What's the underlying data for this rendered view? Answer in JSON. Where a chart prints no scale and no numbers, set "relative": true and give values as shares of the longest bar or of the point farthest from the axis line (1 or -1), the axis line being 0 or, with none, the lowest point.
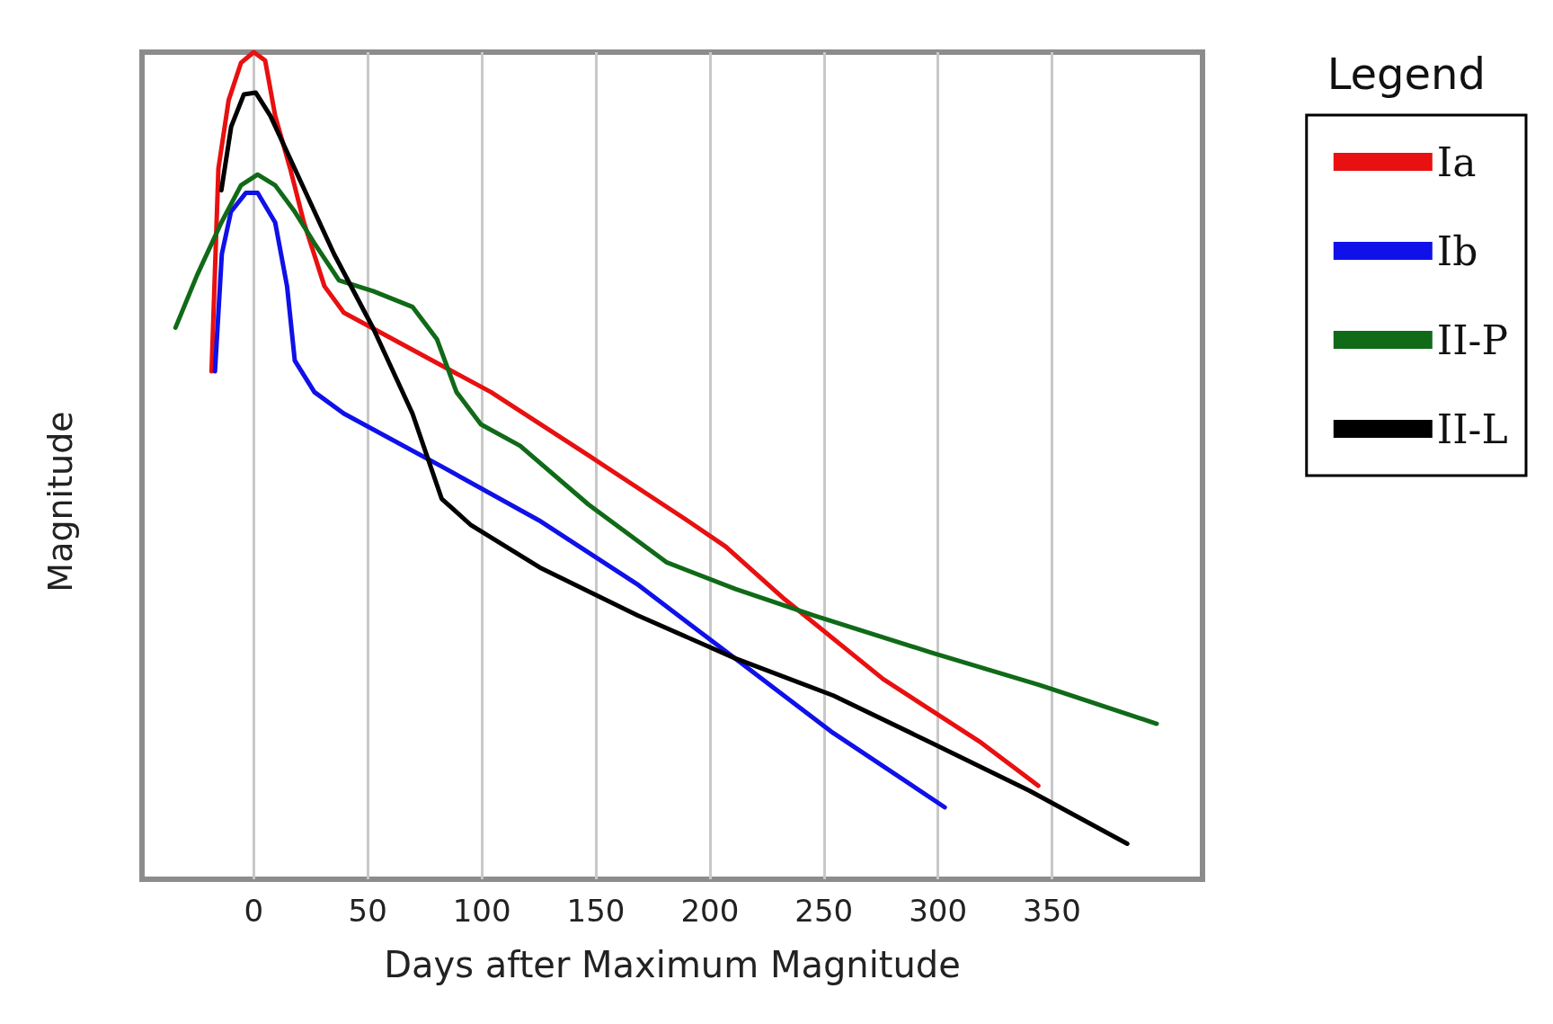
{
  "chart_data": {
    "type": "line",
    "xlabel": "Days after Maximum Magnitude",
    "ylabel": "Magnitude",
    "legend_title": "Legend",
    "relative": true,
    "xlim": [
      -49,
      416
    ],
    "xticks": [
      0,
      50,
      100,
      150,
      200,
      250,
      300,
      350
    ],
    "grid": "x",
    "legend": "right",
    "marker": "none",
    "line_style": "solid",
    "series": [
      {
        "name": "Ia",
        "color": "#e81010",
        "x": [
          -18.5,
          -15.5,
          -11,
          -5.6,
          0,
          5,
          9.4,
          16,
          22,
          31,
          39.5,
          61,
          104,
          147,
          190,
          207,
          233,
          276,
          319,
          344
        ],
        "values": [
          0.614,
          0.859,
          0.942,
          0.987,
          1,
          0.99,
          0.923,
          0.859,
          0.794,
          0.717,
          0.685,
          0.653,
          0.589,
          0.512,
          0.434,
          0.402,
          0.338,
          0.242,
          0.165,
          0.113
        ]
      },
      {
        "name": "Ib",
        "color": "#1010e8",
        "x": [
          -17,
          -14,
          -10,
          -3.4,
          1.7,
          9.4,
          14.6,
          18,
          26.6,
          39.5,
          82.4,
          125,
          168,
          211,
          254,
          303
        ],
        "values": [
          0.614,
          0.756,
          0.807,
          0.83,
          0.83,
          0.794,
          0.717,
          0.627,
          0.589,
          0.563,
          0.499,
          0.434,
          0.357,
          0.267,
          0.177,
          0.087
        ]
      },
      {
        "name": "II-P",
        "color": "#106a18",
        "x": [
          -34.3,
          -24.9,
          -14.2,
          -5.6,
          1.7,
          9.4,
          18,
          26.6,
          37.4,
          52.4,
          69.6,
          80.3,
          88.9,
          99.6,
          116.8,
          146.8,
          181.2,
          211.2,
          245.6,
          297.1,
          344.4,
          395.9
        ],
        "values": [
          0.667,
          0.73,
          0.794,
          0.839,
          0.852,
          0.839,
          0.807,
          0.769,
          0.724,
          0.711,
          0.692,
          0.653,
          0.589,
          0.55,
          0.524,
          0.453,
          0.383,
          0.351,
          0.319,
          0.274,
          0.235,
          0.188
        ]
      },
      {
        "name": "II-L",
        "color": "#000000",
        "x": [
          -14.2,
          -9.9,
          -4.3,
          0.9,
          7.3,
          18,
          35.2,
          52.4,
          69.6,
          82.4,
          95.3,
          125.4,
          168.3,
          211.2,
          254.2,
          297.1,
          340.1,
          383
        ],
        "values": [
          0.833,
          0.91,
          0.949,
          0.951,
          0.923,
          0.859,
          0.756,
          0.666,
          0.563,
          0.46,
          0.428,
          0.377,
          0.319,
          0.267,
          0.222,
          0.165,
          0.107,
          0.043
        ]
      }
    ]
  }
}
